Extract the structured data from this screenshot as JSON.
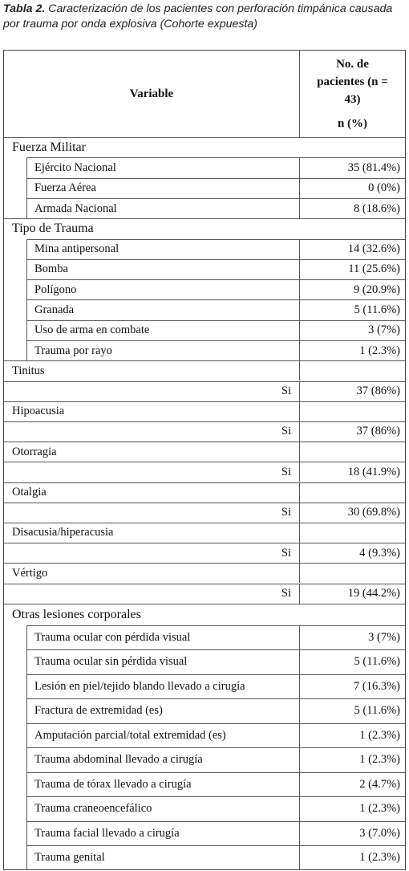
{
  "caption": {
    "label": "Tabla 2.",
    "text": "Caracterización de los pacientes con perforación timpánica causada por trauma por onda explosiva (Cohorte expuesta)"
  },
  "table": {
    "header": {
      "variable": "Variable",
      "count": "No. de pacientes (n = 43)",
      "unit": "n (%)"
    },
    "sections": [
      {
        "title": "Fuerza Militar",
        "rows": [
          {
            "label": "Ejército Nacional",
            "value": "35 (81.4%)"
          },
          {
            "label": "Fuerza Aérea",
            "value": "0 (0%)"
          },
          {
            "label": "Armada Nacional",
            "value": "8 (18.6%)"
          }
        ]
      },
      {
        "title": "Tipo de Trauma",
        "rows": [
          {
            "label": "Mina antipersonal",
            "value": "14 (32.6%)"
          },
          {
            "label": "Bomba",
            "value": "11 (25.6%)"
          },
          {
            "label": "Polígono",
            "value": "9 (20.9%)"
          },
          {
            "label": "Granada",
            "value": "5 (11.6%)"
          },
          {
            "label": "Uso de arma en combate",
            "value": "3 (7%)"
          },
          {
            "label": "Trauma por rayo",
            "value": "1 (2.3%)"
          }
        ]
      },
      {
        "title": "Tinitus",
        "rows": [
          {
            "label": "Si",
            "value": "37 (86%)"
          }
        ]
      },
      {
        "title": "Hipoacusia",
        "rows": [
          {
            "label": "Si",
            "value": "37 (86%)"
          }
        ]
      },
      {
        "title": "Otorragia",
        "rows": [
          {
            "label": "Si",
            "value": "18 (41.9%)"
          }
        ]
      },
      {
        "title": "Otalgia",
        "rows": [
          {
            "label": "Si",
            "value": "30 (69.8%)"
          }
        ]
      },
      {
        "title": "Disacusia/hiperacusia",
        "rows": [
          {
            "label": "Si",
            "value": "4 (9.3%)"
          }
        ]
      },
      {
        "title": "Vértigo",
        "rows": [
          {
            "label": "Si",
            "value": "19 (44.2%)"
          }
        ]
      },
      {
        "title": "Otras lesiones corporales",
        "rows": [
          {
            "label": "Trauma ocular con pérdida visual",
            "value": "3 (7%)"
          },
          {
            "label": "Trauma ocular sin pérdida visual",
            "value": "5 (11.6%)"
          },
          {
            "label": "Lesión en piel/tejido blando llevado a cirugía",
            "value": "7 (16.3%)"
          },
          {
            "label": "Fractura de extremidad (es)",
            "value": "5 (11.6%)"
          },
          {
            "label": "Amputación parcial/total extremidad (es)",
            "value": "1 (2.3%)"
          },
          {
            "label": "Trauma abdominal llevado a cirugía",
            "value": "1 (2.3%)"
          },
          {
            "label": "Trauma de tórax llevado a cirugía",
            "value": "2 (4.7%)"
          },
          {
            "label": "Trauma craneoencefálico",
            "value": "1 (2.3%)"
          },
          {
            "label": "Trauma facial llevado a cirugía",
            "value": "3 (7.0%)"
          },
          {
            "label": "Trauma genital",
            "value": "1 (2.3%)"
          }
        ]
      }
    ]
  }
}
